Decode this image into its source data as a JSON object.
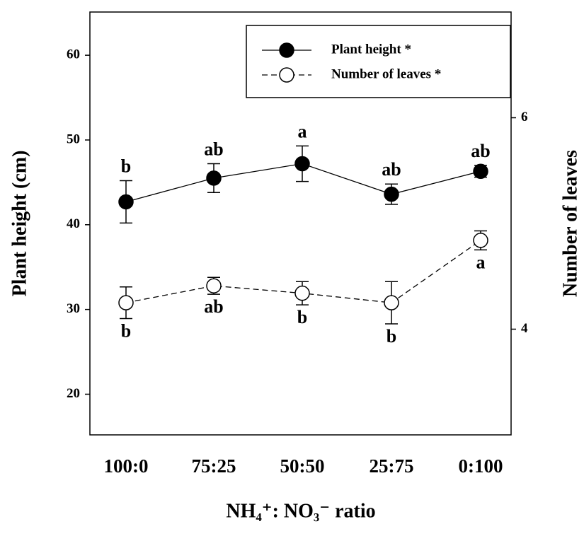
{
  "chart_data": {
    "type": "line",
    "xlabel": "NH₄⁺: NO₃⁻ ratio",
    "ylabel": "Plant height (cm)",
    "y2label": "Number of leaves",
    "categories": [
      "100:0",
      "75:25",
      "50:50",
      "25:75",
      "0:100"
    ],
    "ylim": [
      15.2,
      65.1
    ],
    "yticks": [
      20,
      30,
      40,
      50,
      60
    ],
    "y2lim": [
      3,
      7
    ],
    "y2ticks": [
      4,
      6
    ],
    "legend": "upper right",
    "series": [
      {
        "name": "Plant height *",
        "color": "#000000",
        "marker": "filled",
        "linestyle": "solid",
        "values": [
          42.7,
          45.5,
          47.2,
          43.6,
          46.3
        ],
        "errors": [
          2.5,
          1.7,
          2.1,
          1.2,
          0.7
        ],
        "letters": [
          "b",
          "ab",
          "a",
          "ab",
          "ab"
        ]
      },
      {
        "name": "Number of leaves *",
        "color": "#000000",
        "marker": "open",
        "linestyle": "dashed",
        "axis": "y2",
        "values": [
          4.25,
          4.41,
          4.34,
          4.25,
          4.84
        ],
        "errors": [
          0.15,
          0.08,
          0.11,
          0.2,
          0.09
        ],
        "letters": [
          "b",
          "ab",
          "b",
          "b",
          "a"
        ]
      }
    ]
  }
}
